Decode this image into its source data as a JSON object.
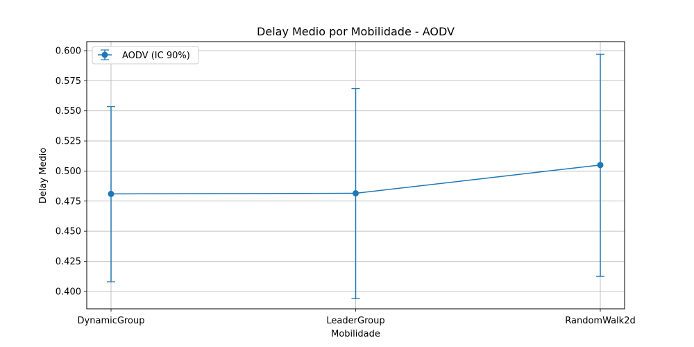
{
  "chart_data": {
    "type": "line",
    "title": "Delay Medio por Mobilidade - AODV",
    "xlabel": "Mobilidade",
    "ylabel": "Delay Medio",
    "categories": [
      "DynamicGroup",
      "LeaderGroup",
      "RandomWalk2d"
    ],
    "series": [
      {
        "name": "AODV (IC 90%)",
        "color": "#1f77b4",
        "values": [
          0.481,
          0.4815,
          0.505
        ],
        "err_low": [
          0.408,
          0.394,
          0.4125
        ],
        "err_high": [
          0.5535,
          0.5685,
          0.597
        ]
      }
    ],
    "ylim": [
      0.3855,
      0.6075
    ],
    "yticks": [
      0.4,
      0.425,
      0.45,
      0.475,
      0.5,
      0.525,
      0.55,
      0.575,
      0.6
    ],
    "ytick_labels": [
      "0.400",
      "0.425",
      "0.450",
      "0.475",
      "0.500",
      "0.525",
      "0.550",
      "0.575",
      "0.600"
    ],
    "grid": true,
    "legend_position": "top-left"
  }
}
